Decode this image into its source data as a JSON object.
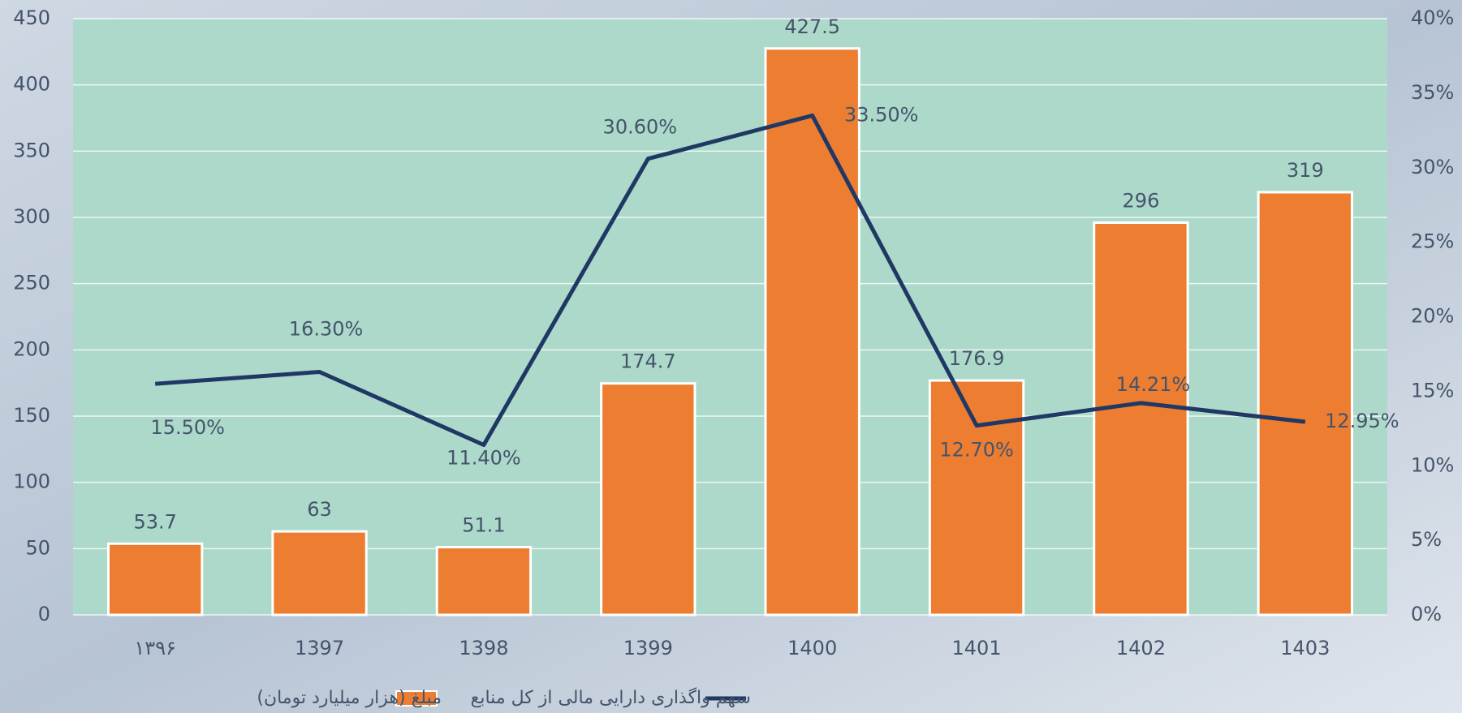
{
  "chart_data": {
    "type": "bar",
    "categories": [
      "۱۳۹۶",
      "1397",
      "1398",
      "1399",
      "1400",
      "1401",
      "1402",
      "1403"
    ],
    "series": [
      {
        "name": "مبلغ (هزار میلیارد تومان)",
        "type": "bar",
        "color": "#ed7d31",
        "values": [
          53.7,
          63,
          51.1,
          174.7,
          427.5,
          176.9,
          296,
          319
        ]
      },
      {
        "name": "سهم واگذاری دارایی مالی از کل منابع",
        "type": "line",
        "axis": "y2",
        "color": "#1f3864",
        "values": [
          15.5,
          16.3,
          11.4,
          30.6,
          33.5,
          12.7,
          14.21,
          12.95
        ],
        "value_labels": [
          "15.50%",
          "16.30%",
          "11.40%",
          "30.60%",
          "33.50%",
          "12.70%",
          "14.21%",
          "12.95%"
        ]
      }
    ],
    "ylim": [
      0,
      450
    ],
    "yticks": [
      0,
      50,
      100,
      150,
      200,
      250,
      300,
      350,
      400,
      450
    ],
    "y2lim": [
      0,
      40
    ],
    "y2ticks": [
      {
        "value": 0,
        "label": "0%"
      },
      {
        "value": 5,
        "label": "5%"
      },
      {
        "value": 10,
        "label": "10%"
      },
      {
        "value": 15,
        "label": "15%"
      },
      {
        "value": 20,
        "label": "20%"
      },
      {
        "value": 25,
        "label": "25%"
      },
      {
        "value": 30,
        "label": "30%"
      },
      {
        "value": 35,
        "label": "35%"
      },
      {
        "value": 40,
        "label": "40%"
      }
    ],
    "grid": true,
    "legend": "bottom"
  }
}
